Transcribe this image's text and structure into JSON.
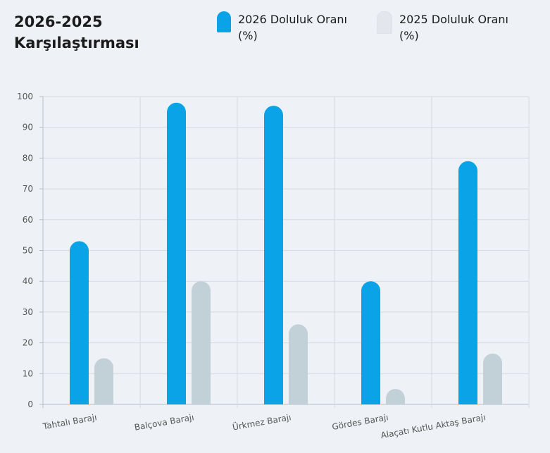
{
  "header": {
    "title_line1": "2026-2025",
    "title_line2": "Karşılaştırması"
  },
  "legend": [
    {
      "label_line1": "2026 Doluluk Oranı",
      "label_line2": "(%)",
      "color": "#0aa3e8"
    },
    {
      "label_line1": "2025 Doluluk Oranı",
      "label_line2": "(%)",
      "color": "#e3e7ec"
    }
  ],
  "chart_data": {
    "type": "bar",
    "categories": [
      "Tahtalı Barajı",
      "Balçova Barajı",
      "Ürkmez Barajı",
      "Gördes Barajı",
      "Alaçatı Kutlu Aktaş Barajı"
    ],
    "series": [
      {
        "name": "2026 Doluluk Oranı (%)",
        "values": [
          53,
          98,
          97,
          40,
          79
        ],
        "color": "#0aa3e8"
      },
      {
        "name": "2025 Doluluk Oranı (%)",
        "values": [
          15,
          40,
          26,
          5,
          16.5
        ],
        "color": "#c2d1d8"
      }
    ],
    "ylim": [
      0,
      100
    ],
    "yticks": [
      0,
      10,
      20,
      30,
      40,
      50,
      60,
      70,
      80,
      90,
      100
    ],
    "grid": true
  }
}
